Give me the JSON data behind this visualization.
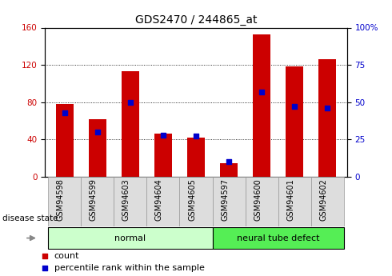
{
  "title": "GDS2470 / 244865_at",
  "samples": [
    "GSM94598",
    "GSM94599",
    "GSM94603",
    "GSM94604",
    "GSM94605",
    "GSM94597",
    "GSM94600",
    "GSM94601",
    "GSM94602"
  ],
  "counts": [
    78,
    62,
    113,
    46,
    42,
    14,
    153,
    118,
    126
  ],
  "percentiles": [
    43,
    30,
    50,
    28,
    27,
    10,
    57,
    47,
    46
  ],
  "groups": [
    {
      "label": "normal",
      "start": 0,
      "end": 5,
      "color": "#ccffcc",
      "border": "#44aa44"
    },
    {
      "label": "neural tube defect",
      "start": 5,
      "end": 9,
      "color": "#55ee55",
      "border": "#44aa44"
    }
  ],
  "left_yaxis": {
    "min": 0,
    "max": 160,
    "ticks": [
      0,
      40,
      80,
      120,
      160
    ],
    "color": "#cc0000"
  },
  "right_yaxis": {
    "min": 0,
    "max": 100,
    "ticks": [
      0,
      25,
      50,
      75,
      100
    ],
    "color": "#0000cc"
  },
  "bar_color": "#cc0000",
  "percentile_color": "#0000cc",
  "bar_width": 0.55,
  "grid_color": "#000000",
  "title_fontsize": 10,
  "tick_fontsize": 7.5,
  "sample_fontsize": 7,
  "group_fontsize": 8,
  "legend_fontsize": 8,
  "disease_state_label": "disease state",
  "legend_count": "count",
  "legend_percentile": "percentile rank within the sample",
  "sample_box_color": "#dddddd",
  "sample_box_edge": "#999999"
}
